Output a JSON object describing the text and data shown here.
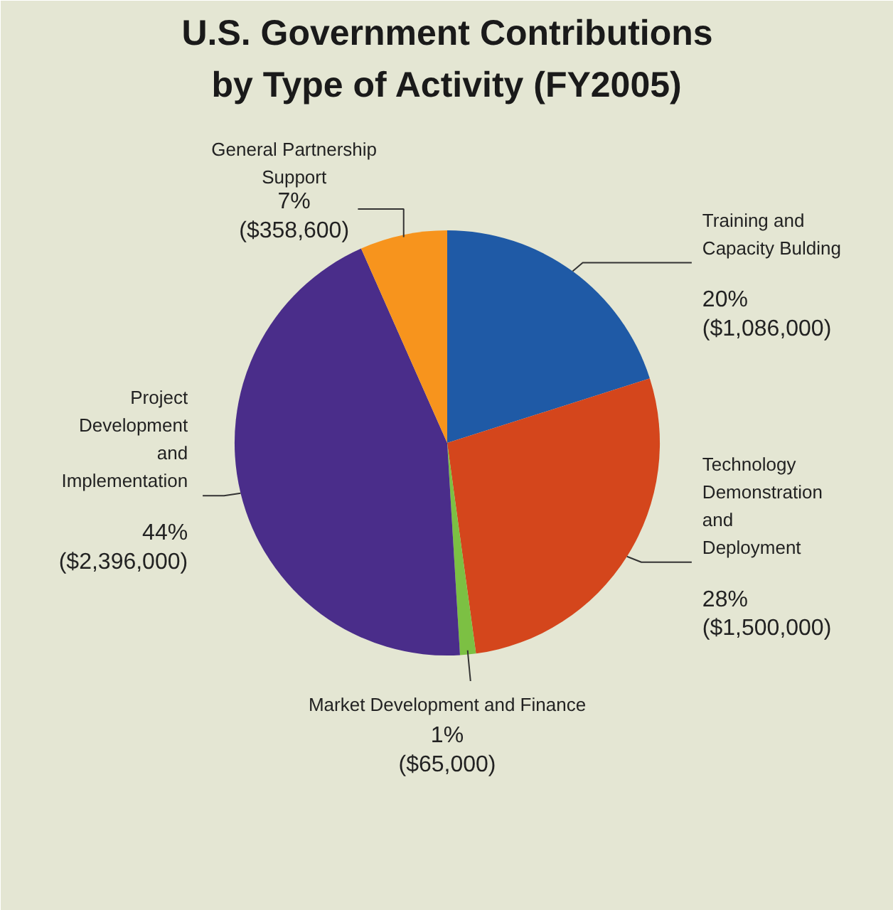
{
  "chart_data": {
    "type": "pie",
    "title": "U.S. Government Contributions\nby Type of Activity (FY2005)",
    "categories": [
      "Training and\nCapacity Bulding",
      "Technology\nDemonstration\nand\nDeployment",
      "Market Development and Finance",
      "Project\nDevelopment\nand\nImplementation",
      "General Partnership\nSupport"
    ],
    "values": [
      1086000,
      1500000,
      65000,
      2396000,
      358600
    ],
    "colors": [
      "#1f5aa6",
      "#d4461c",
      "#7cc043",
      "#4a2d8a",
      "#f7941d"
    ],
    "value_labels": [
      "20%\n($1,086,000)",
      "28%\n($1,500,000)",
      "1%\n($65,000)",
      "44%\n($2,396,000)",
      "7%\n($358,600)"
    ]
  }
}
